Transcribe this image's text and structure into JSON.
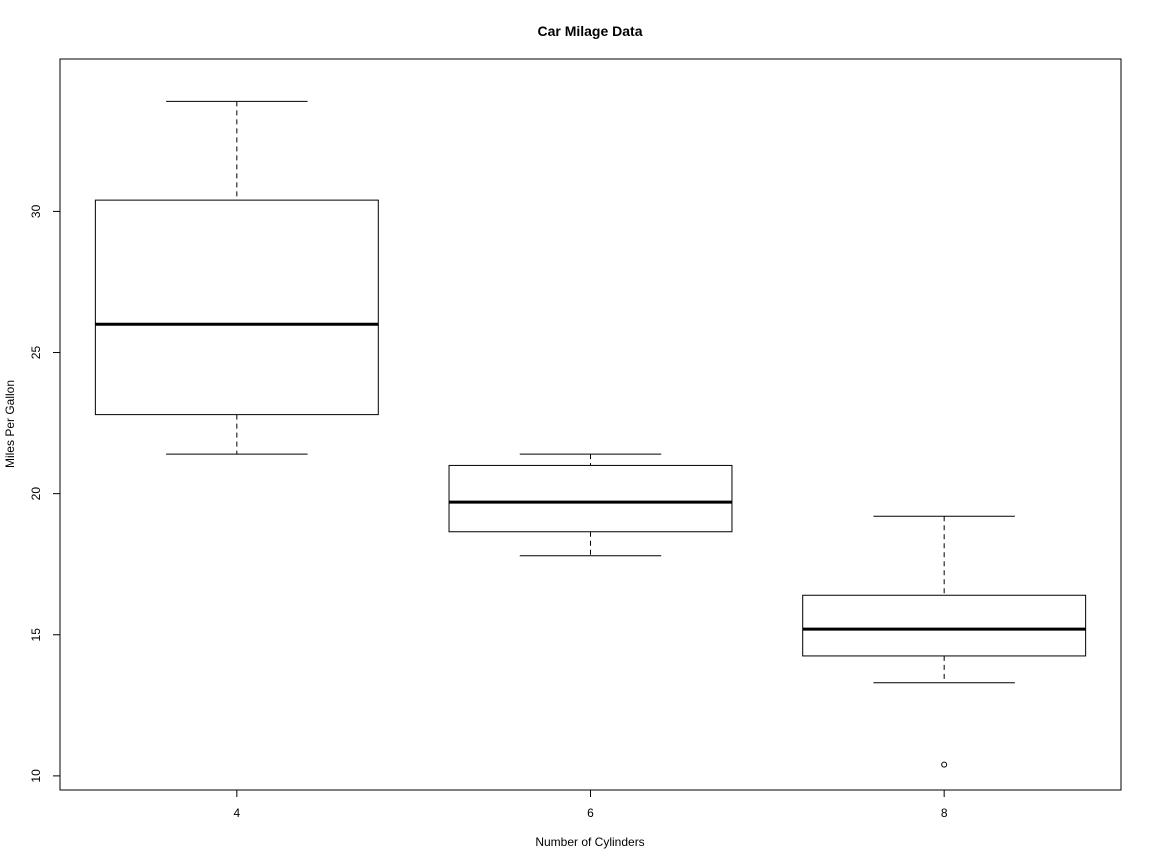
{
  "chart_data": {
    "type": "boxplot",
    "title": "Car Milage Data",
    "xlabel": "Number of Cylinders",
    "ylabel": "Miles Per Gallon",
    "categories": [
      "4",
      "6",
      "8"
    ],
    "ylim": [
      9.5,
      35.4
    ],
    "yticks": [
      "10",
      "15",
      "20",
      "25",
      "30"
    ],
    "grid": false,
    "legend": "none",
    "boxes": [
      {
        "category": "4",
        "whisker_low": 21.4,
        "q1": 22.8,
        "median": 26.0,
        "q3": 30.4,
        "whisker_high": 33.9,
        "outliers": []
      },
      {
        "category": "6",
        "whisker_low": 17.8,
        "q1": 18.65,
        "median": 19.7,
        "q3": 21.0,
        "whisker_high": 21.4,
        "outliers": []
      },
      {
        "category": "8",
        "whisker_low": 13.3,
        "q1": 14.25,
        "median": 15.2,
        "q3": 16.4,
        "whisker_high": 19.2,
        "outliers": [
          10.4
        ]
      }
    ]
  }
}
